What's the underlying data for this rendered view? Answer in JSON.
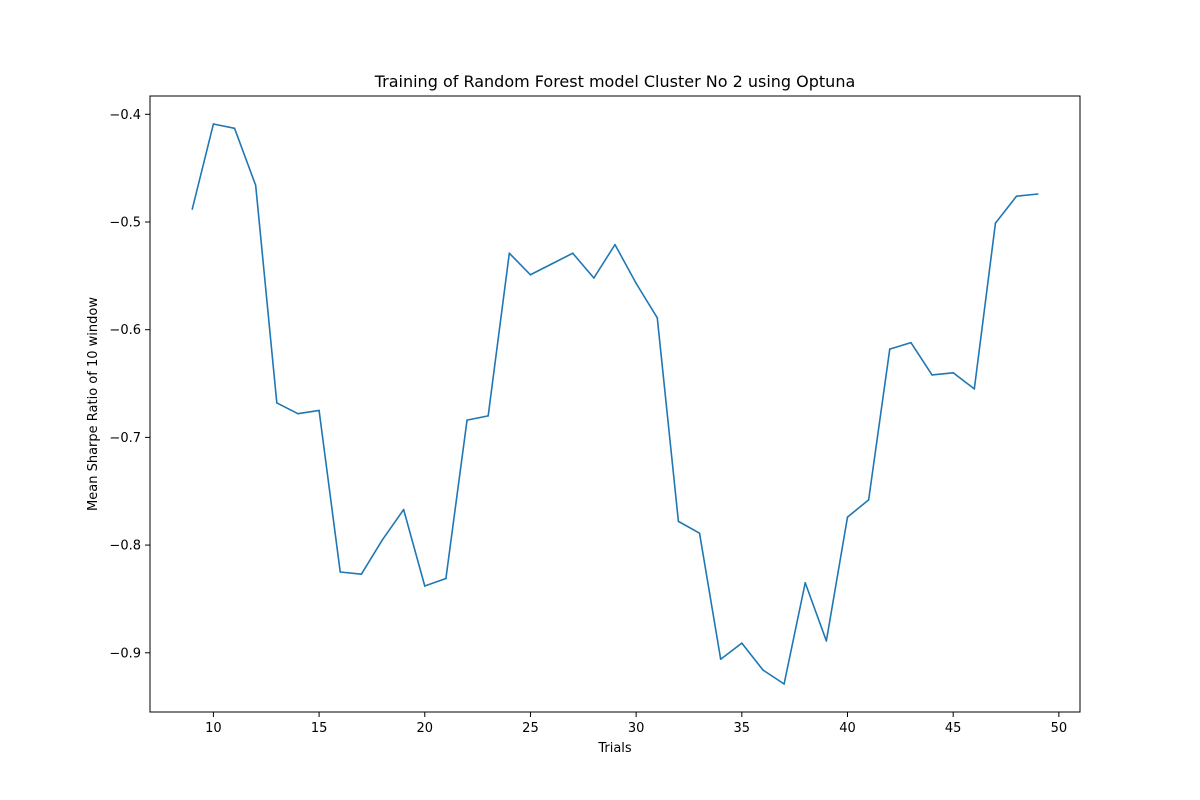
{
  "chart_data": {
    "type": "line",
    "title": "Training of Random Forest model Cluster No 2 using Optuna",
    "xlabel": "Trials",
    "ylabel": "Mean Sharpe Ratio of 10 window",
    "xlim": [
      7,
      51
    ],
    "ylim": [
      -0.955,
      -0.383
    ],
    "grid": false,
    "line_color": "#1f77b4",
    "x_ticks": [
      10,
      15,
      20,
      25,
      30,
      35,
      40,
      45,
      50
    ],
    "x_tick_labels": [
      "10",
      "15",
      "20",
      "25",
      "30",
      "35",
      "40",
      "45",
      "50"
    ],
    "y_ticks": [
      -0.4,
      -0.5,
      -0.6,
      -0.7,
      -0.8,
      -0.9
    ],
    "y_tick_labels": [
      "−0.4",
      "−0.5",
      "−0.6",
      "−0.7",
      "−0.8",
      "−0.9"
    ],
    "series": [
      {
        "x": [
          9,
          10,
          11,
          12,
          13,
          14,
          15,
          16,
          17,
          18,
          19,
          20,
          21,
          22,
          23,
          24,
          25,
          26,
          27,
          28,
          29,
          30,
          31,
          32,
          33,
          34,
          35,
          36,
          37,
          38,
          39,
          40,
          41,
          42,
          43,
          44,
          45,
          46,
          47,
          48,
          49
        ],
        "values": [
          -0.488,
          -0.409,
          -0.413,
          -0.466,
          -0.668,
          -0.678,
          -0.675,
          -0.825,
          -0.827,
          -0.795,
          -0.767,
          -0.838,
          -0.831,
          -0.684,
          -0.68,
          -0.529,
          -0.549,
          -0.539,
          -0.529,
          -0.552,
          -0.521,
          -0.557,
          -0.589,
          -0.778,
          -0.789,
          -0.906,
          -0.891,
          -0.916,
          -0.929,
          -0.835,
          -0.889,
          -0.774,
          -0.758,
          -0.618,
          -0.612,
          -0.642,
          -0.64,
          -0.655,
          -0.501,
          -0.476,
          -0.474
        ]
      }
    ]
  }
}
